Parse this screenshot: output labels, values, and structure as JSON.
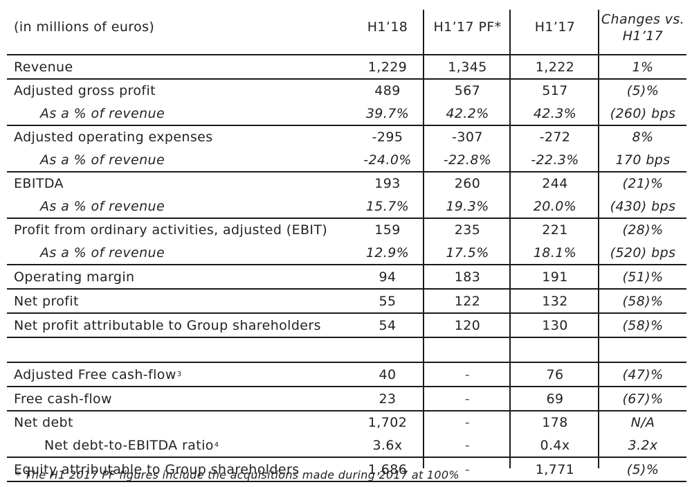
{
  "header": {
    "label": "(in millions of euros)",
    "h118": "H1’18",
    "h117pf": "H1’17 PF*",
    "h117": "H1’17",
    "changes_line1": "Changes vs.",
    "changes_line2": "H1’17"
  },
  "rows": [
    {
      "label": "Revenue",
      "h118": "1,229",
      "h117pf": "1,345",
      "h117": "1,222",
      "change": "1%"
    },
    {
      "label": "Adjusted gross profit",
      "h118": "489",
      "h117pf": "567",
      "h117": "517",
      "change": "(5)%"
    },
    {
      "label": "As a % of revenue",
      "h118": "39.7%",
      "h117pf": "42.2%",
      "h117": "42.3%",
      "change": "(260) bps"
    },
    {
      "label": "Adjusted operating expenses",
      "h118": "-295",
      "h117pf": "-307",
      "h117": "-272",
      "change": "8%"
    },
    {
      "label": "As a % of revenue",
      "h118": "-24.0%",
      "h117pf": "-22.8%",
      "h117": "-22.3%",
      "change": "170 bps"
    },
    {
      "label": "EBITDA",
      "h118": "193",
      "h117pf": "260",
      "h117": "244",
      "change": "(21)%"
    },
    {
      "label": "As a % of revenue",
      "h118": "15.7%",
      "h117pf": "19.3%",
      "h117": "20.0%",
      "change": "(430) bps"
    },
    {
      "label": "Profit from ordinary activities, adjusted (EBIT)",
      "h118": "159",
      "h117pf": "235",
      "h117": "221",
      "change": "(28)%"
    },
    {
      "label": "As a % of revenue",
      "h118": "12.9%",
      "h117pf": "17.5%",
      "h117": "18.1%",
      "change": "(520) bps"
    },
    {
      "label": "Operating margin",
      "h118": "94",
      "h117pf": "183",
      "h117": "191",
      "change": "(51)%"
    },
    {
      "label": "Net profit",
      "h118": "55",
      "h117pf": "122",
      "h117": "132",
      "change": "(58)%"
    },
    {
      "label": "Net profit attributable to Group shareholders",
      "h118": "54",
      "h117pf": "120",
      "h117": "130",
      "change": "(58)%"
    }
  ],
  "cash_rows": [
    {
      "label": "Adjusted Free cash-flow",
      "sup": "3",
      "h118": "40",
      "h117pf": "-",
      "h117": "76",
      "change": "(47)%"
    },
    {
      "label": "Free cash-flow",
      "h118": "23",
      "h117pf": "-",
      "h117": "69",
      "change": "(67)%"
    },
    {
      "label": "Net debt",
      "h118": "1,702",
      "h117pf": "-",
      "h117": "178",
      "change": "N/A"
    },
    {
      "label": "Net debt-to-EBITDA ratio",
      "sup": "4",
      "h118": "3.6x",
      "h117pf": "-",
      "h117": "0.4x",
      "change": "3.2x"
    },
    {
      "label": "Equity attributable to Group shareholders",
      "h118": "1,686",
      "h117pf": "-",
      "h117": "1,771",
      "change": "(5)%"
    }
  ],
  "footnote": "* The H1 2017 PF figures include the acquisitions made during 2017 at 100%"
}
